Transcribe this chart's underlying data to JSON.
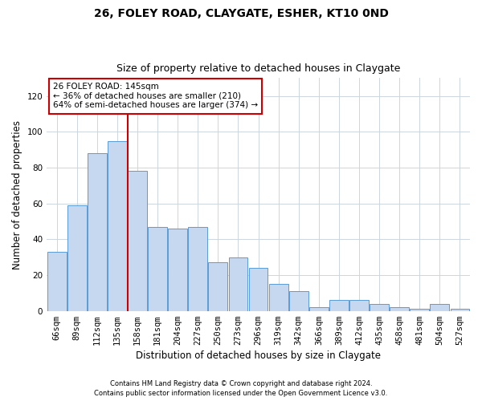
{
  "title1": "26, FOLEY ROAD, CLAYGATE, ESHER, KT10 0ND",
  "title2": "Size of property relative to detached houses in Claygate",
  "xlabel": "Distribution of detached houses by size in Claygate",
  "ylabel": "Number of detached properties",
  "footer1": "Contains HM Land Registry data © Crown copyright and database right 2024.",
  "footer2": "Contains public sector information licensed under the Open Government Licence v3.0.",
  "annotation_line1": "26 FOLEY ROAD: 145sqm",
  "annotation_line2": "← 36% of detached houses are smaller (210)",
  "annotation_line3": "64% of semi-detached houses are larger (374) →",
  "categories": [
    "66sqm",
    "89sqm",
    "112sqm",
    "135sqm",
    "158sqm",
    "181sqm",
    "204sqm",
    "227sqm",
    "250sqm",
    "273sqm",
    "296sqm",
    "319sqm",
    "342sqm",
    "366sqm",
    "389sqm",
    "412sqm",
    "435sqm",
    "458sqm",
    "481sqm",
    "504sqm",
    "527sqm"
  ],
  "values": [
    33,
    59,
    88,
    95,
    78,
    47,
    46,
    47,
    27,
    30,
    24,
    15,
    11,
    2,
    6,
    6,
    4,
    2,
    1,
    4,
    1
  ],
  "bar_color": "#c5d8f0",
  "bar_edge_color": "#5b9bd5",
  "vline_x_index": 3.5,
  "vline_color": "#cc0000",
  "annotation_box_color": "#ffffff",
  "annotation_box_edge": "#cc0000",
  "bg_color": "#ffffff",
  "grid_color": "#cdd5e0",
  "ylim": [
    0,
    130
  ],
  "yticks": [
    0,
    20,
    40,
    60,
    80,
    100,
    120
  ],
  "title1_fontsize": 10,
  "title2_fontsize": 9,
  "xlabel_fontsize": 8.5,
  "ylabel_fontsize": 8.5,
  "annotation_fontsize": 7.5,
  "tick_fontsize": 7.5,
  "footer_fontsize": 6.0
}
